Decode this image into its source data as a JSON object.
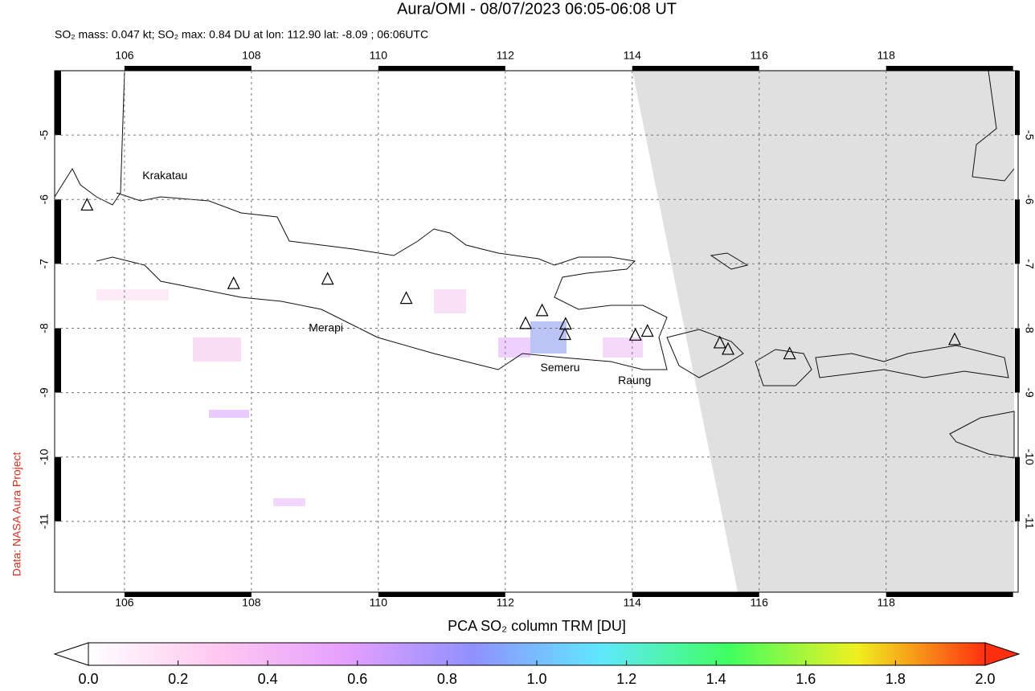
{
  "title": "Aura/OMI - 08/07/2023 06:05-06:08 UT",
  "subtitle": "SO₂ mass: 0.047 kt; SO₂ max: 0.84 DU at lon: 112.90 lat: -8.09 ; 06:06UTC",
  "credit": "Data: NASA Aura Project",
  "map": {
    "xlim": [
      104.9,
      120.08
    ],
    "ylim": [
      -12.1,
      -4
    ],
    "xticks": [
      106,
      108,
      110,
      112,
      114,
      116,
      118
    ],
    "yticks": [
      -5,
      -6,
      -7,
      -8,
      -9,
      -10,
      -11
    ],
    "no_data_color": "#e0e0e0",
    "volcanoes": [
      {
        "name": "Krakatau",
        "lon": 105.41,
        "lat": -6.09
      },
      {
        "lon": 107.72,
        "lat": -7.31
      },
      {
        "name": "Merapi",
        "lon": 109.2,
        "lat": -7.24
      },
      {
        "lon": 110.44,
        "lat": -7.54
      },
      {
        "lon": 112.32,
        "lat": -7.93
      },
      {
        "lon": 112.58,
        "lat": -7.73
      },
      {
        "lon": 112.95,
        "lat": -7.94
      },
      {
        "name": "Semeru",
        "lon": 112.94,
        "lat": -8.1
      },
      {
        "lon": 114.05,
        "lat": -8.11
      },
      {
        "name": "Raung",
        "lon": 114.24,
        "lat": -8.05
      },
      {
        "lon": 115.38,
        "lat": -8.23
      },
      {
        "lon": 115.51,
        "lat": -8.33
      },
      {
        "lon": 116.48,
        "lat": -8.4
      },
      {
        "lon": 119.08,
        "lat": -8.18
      }
    ]
  },
  "colorbar": {
    "label": "PCA SO₂ column TRM [DU]",
    "lim": [
      0,
      2
    ],
    "ticks": [
      {
        "value": 0,
        "label": "0.0"
      },
      0.2,
      0.4,
      0.6,
      0.8,
      {
        "value": 1,
        "label": "1.0"
      },
      1.2,
      1.4,
      1.6,
      1.8,
      {
        "value": 2,
        "label": "2.0"
      }
    ],
    "colors": [
      "#ffffff",
      "#ffc8f0",
      "#e6a0ff",
      "#9090ff",
      "#60e8ff",
      "#40ff60",
      "#f0f020",
      "#ff3010"
    ]
  }
}
